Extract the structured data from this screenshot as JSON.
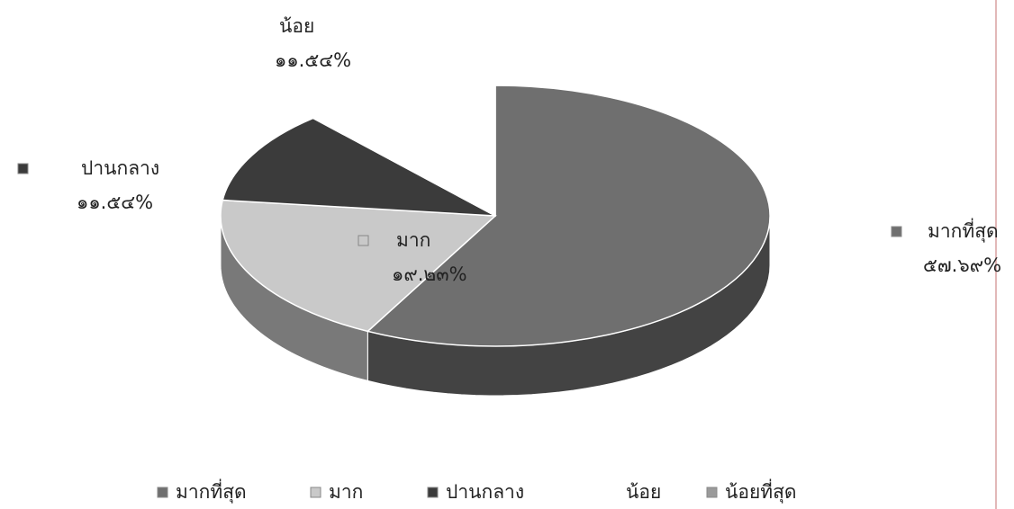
{
  "chart_data": {
    "type": "pie",
    "three_d": true,
    "categories": [
      "มากที่สุด",
      "มาก",
      "ปานกลาง",
      "น้อย",
      "น้อยที่สุด"
    ],
    "values": [
      57.69,
      19.23,
      11.54,
      11.54,
      0
    ],
    "value_labels": [
      "๕๗.๖๙%",
      "๑๙.๒๓%",
      "๑๑.๕๔%",
      "๑๑.๕๔%",
      null
    ],
    "colors": [
      "#6f6f6f",
      "#c9c9c9",
      "#3b3b3b",
      "#ffffff",
      "#9a9a9a"
    ],
    "legend": "bottom"
  }
}
